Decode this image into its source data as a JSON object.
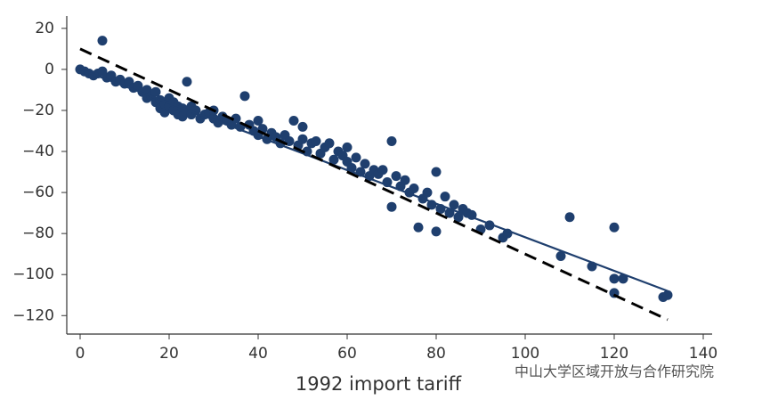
{
  "chart_data": {
    "type": "scatter",
    "xlabel": "1992 import tariff",
    "watermark": "中山大学区域开放与合作研究院",
    "xlim": [
      -3,
      142
    ],
    "ylim": [
      -129,
      26
    ],
    "xticks": [
      0,
      20,
      40,
      60,
      80,
      100,
      120,
      140
    ],
    "yticks": [
      {
        "value": 20,
        "label": "20"
      },
      {
        "value": 0,
        "label": "0"
      },
      {
        "value": -20,
        "label": "−20"
      },
      {
        "value": -40,
        "label": "−40"
      },
      {
        "value": -60,
        "label": "−60"
      },
      {
        "value": -80,
        "label": "−80"
      },
      {
        "value": -100,
        "label": "−100"
      },
      {
        "value": -120,
        "label": "−120"
      }
    ],
    "series": [
      {
        "color": "#1f3f6e",
        "x": [
          0,
          1,
          2,
          3,
          4,
          5,
          5,
          6,
          7,
          8,
          9,
          10,
          11,
          12,
          13,
          14,
          15,
          15,
          16,
          17,
          17,
          18,
          18,
          19,
          19,
          20,
          20,
          21,
          21,
          22,
          22,
          23,
          23,
          24,
          24,
          25,
          25,
          26,
          27,
          28,
          29,
          30,
          30,
          31,
          32,
          33,
          34,
          35,
          36,
          37,
          38,
          39,
          40,
          40,
          41,
          42,
          43,
          44,
          45,
          46,
          47,
          48,
          49,
          50,
          50,
          51,
          52,
          53,
          54,
          55,
          56,
          57,
          58,
          59,
          60,
          60,
          61,
          62,
          63,
          64,
          65,
          66,
          67,
          68,
          69,
          70,
          70,
          71,
          72,
          73,
          74,
          75,
          76,
          77,
          78,
          79,
          80,
          80,
          81,
          82,
          83,
          84,
          85,
          86,
          87,
          88,
          90,
          92,
          95,
          96,
          108,
          110,
          115,
          120,
          120,
          120,
          122,
          131,
          132
        ],
        "values": [
          0,
          -1,
          -2,
          -3,
          -2,
          -1,
          14,
          -4,
          -3,
          -6,
          -5,
          -7,
          -6,
          -9,
          -8,
          -11,
          -10,
          -14,
          -13,
          -16,
          -11,
          -15,
          -19,
          -17,
          -21,
          -18,
          -14,
          -20,
          -16,
          -22,
          -18,
          -19,
          -23,
          -21,
          -6,
          -18,
          -22,
          -20,
          -24,
          -22,
          -21,
          -24,
          -20,
          -26,
          -23,
          -25,
          -27,
          -24,
          -28,
          -13,
          -27,
          -30,
          -25,
          -32,
          -29,
          -34,
          -31,
          -33,
          -36,
          -32,
          -35,
          -25,
          -37,
          -34,
          -28,
          -40,
          -36,
          -35,
          -41,
          -38,
          -36,
          -44,
          -40,
          -42,
          -45,
          -38,
          -48,
          -43,
          -50,
          -46,
          -52,
          -49,
          -51,
          -49,
          -55,
          -35,
          -67,
          -52,
          -57,
          -54,
          -60,
          -58,
          -77,
          -63,
          -60,
          -66,
          -50,
          -79,
          -68,
          -62,
          -70,
          -66,
          -72,
          -68,
          -70,
          -71,
          -78,
          -76,
          -82,
          -80,
          -91,
          -72,
          -96,
          -77,
          -102,
          -109,
          -102,
          -111,
          -110
        ]
      }
    ],
    "lines": [
      {
        "color": "#1f3f6e",
        "dashed": false,
        "x": [
          0,
          132
        ],
        "values": [
          0,
          -108
        ]
      },
      {
        "color": "#000000",
        "dashed": true,
        "x": [
          0,
          132
        ],
        "values": [
          10,
          -122
        ]
      }
    ]
  }
}
